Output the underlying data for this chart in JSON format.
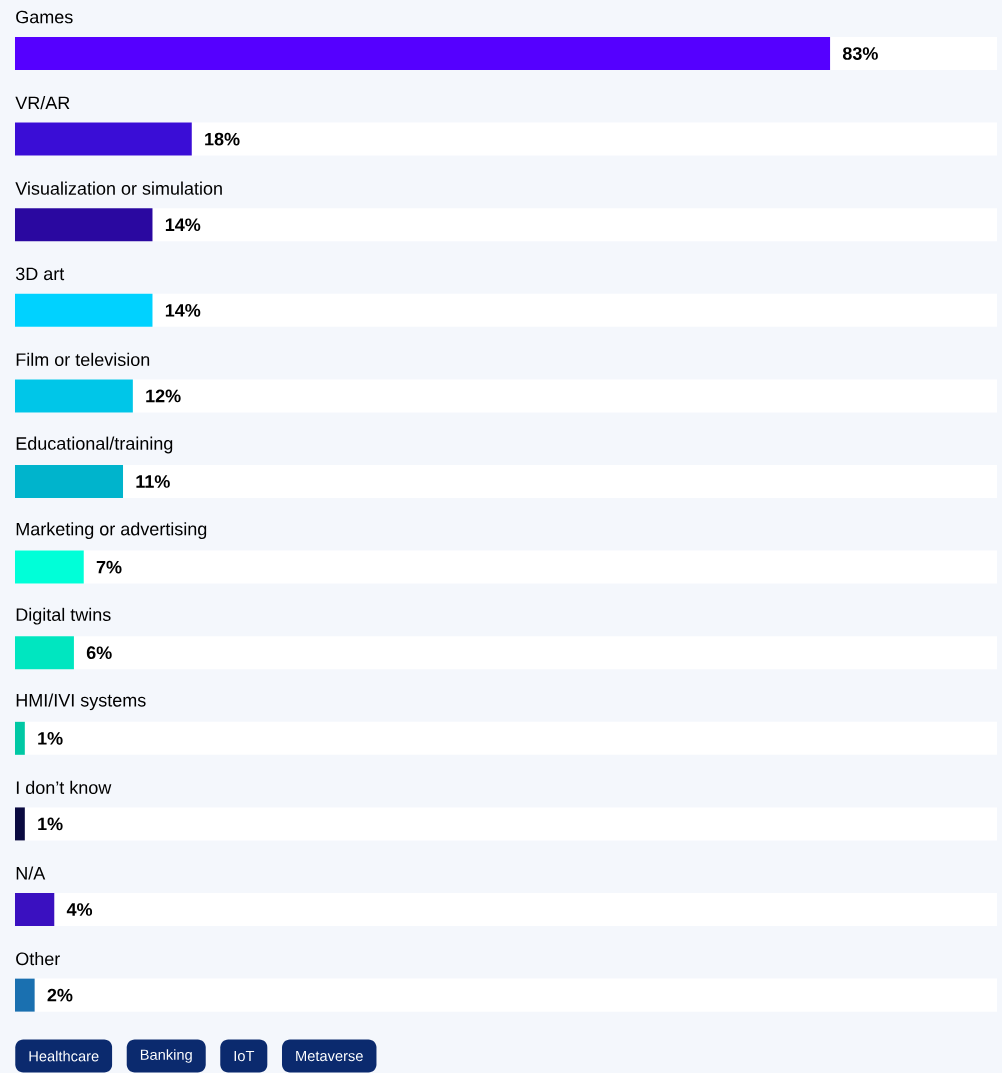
{
  "chart_data": {
    "type": "bar",
    "orientation": "horizontal",
    "categories": [
      "Games",
      "VR/AR",
      "Visualization or simulation",
      "3D art",
      "Film or television",
      "Educational/training",
      "Marketing or advertising",
      "Digital twins",
      "HMI/IVI systems",
      "I don’t know",
      "N/A",
      "Other"
    ],
    "values": [
      83,
      18,
      14,
      14,
      12,
      11,
      7,
      6,
      1,
      1,
      4,
      2
    ],
    "colors": [
      "#5500ff",
      "#3a0dd6",
      "#2a08a0",
      "#00d2ff",
      "#00c6e8",
      "#00b4cc",
      "#00ffd8",
      "#00e6c0",
      "#00c8a4",
      "#0a0a40",
      "#3a10c0",
      "#1a70b0"
    ],
    "value_labels": [
      "83%",
      "18%",
      "14%",
      "14%",
      "12%",
      "11%",
      "7%",
      "6%",
      "1%",
      "1%",
      "4%",
      "2%"
    ],
    "xlim": [
      0,
      100
    ],
    "annotations": [
      "Healthcare",
      "Banking",
      "IoT",
      "Metaverse"
    ]
  }
}
